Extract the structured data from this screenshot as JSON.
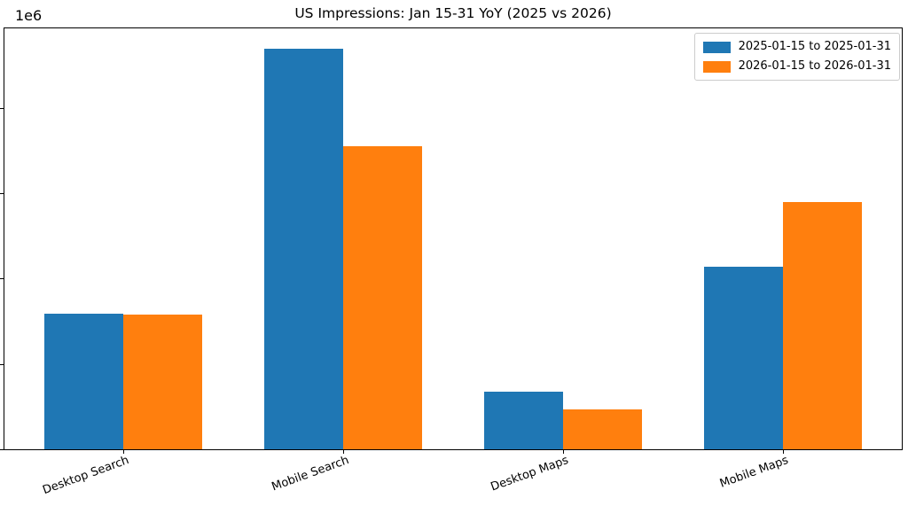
{
  "chart_data": {
    "type": "bar",
    "title": "US Impressions: Jan 15-31 YoY (2025 vs 2026)",
    "y_offset_label": "1e6",
    "categories": [
      "Desktop Search",
      "Mobile Search",
      "Desktop Maps",
      "Mobile Maps"
    ],
    "series": [
      {
        "name": "2025-01-15 to 2025-01-31",
        "color": "#1f77b4",
        "values": [
          318000,
          939000,
          136000,
          428000
        ]
      },
      {
        "name": "2026-01-15 to 2026-01-31",
        "color": "#ff7f0e",
        "values": [
          316000,
          711000,
          93000,
          579000
        ]
      }
    ],
    "ylim": [
      0,
      986000
    ],
    "y_ticks": [
      0,
      200000,
      400000,
      600000,
      800000
    ],
    "y_tick_labels_visible": false,
    "grid": false,
    "legend_position": "upper right",
    "x_tick_rotation_deg": 20,
    "xlabel": "",
    "ylabel": ""
  }
}
